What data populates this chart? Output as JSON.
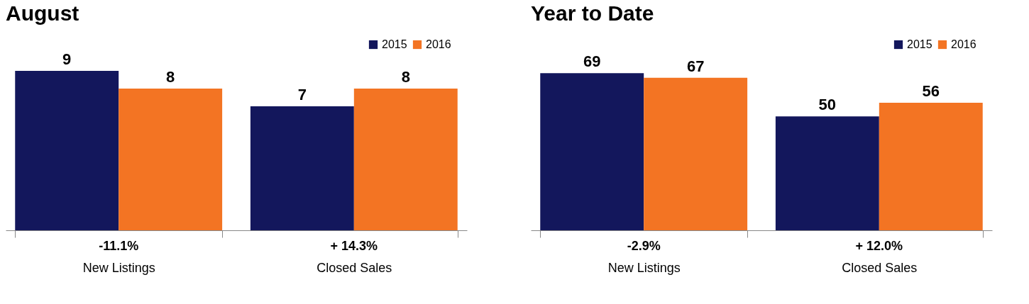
{
  "chart_data": [
    {
      "type": "bar",
      "title": "August",
      "categories": [
        "New Listings",
        "Closed Sales"
      ],
      "series": [
        {
          "name": "2015",
          "color": "#13175c",
          "values": [
            9,
            7
          ]
        },
        {
          "name": "2016",
          "color": "#f37423",
          "values": [
            8,
            8
          ]
        }
      ],
      "data_labels": true,
      "legend": "top right",
      "grid": false,
      "annotations": [
        "-11.1%",
        "+ 14.3%"
      ]
    },
    {
      "type": "bar",
      "title": "Year to Date",
      "categories": [
        "New Listings",
        "Closed Sales"
      ],
      "series": [
        {
          "name": "2015",
          "color": "#13175c",
          "values": [
            69,
            50
          ]
        },
        {
          "name": "2016",
          "color": "#f37423",
          "values": [
            67,
            56
          ]
        }
      ],
      "data_labels": true,
      "legend": "top right",
      "grid": false,
      "annotations": [
        "-2.9%",
        "+ 12.0%"
      ]
    }
  ]
}
